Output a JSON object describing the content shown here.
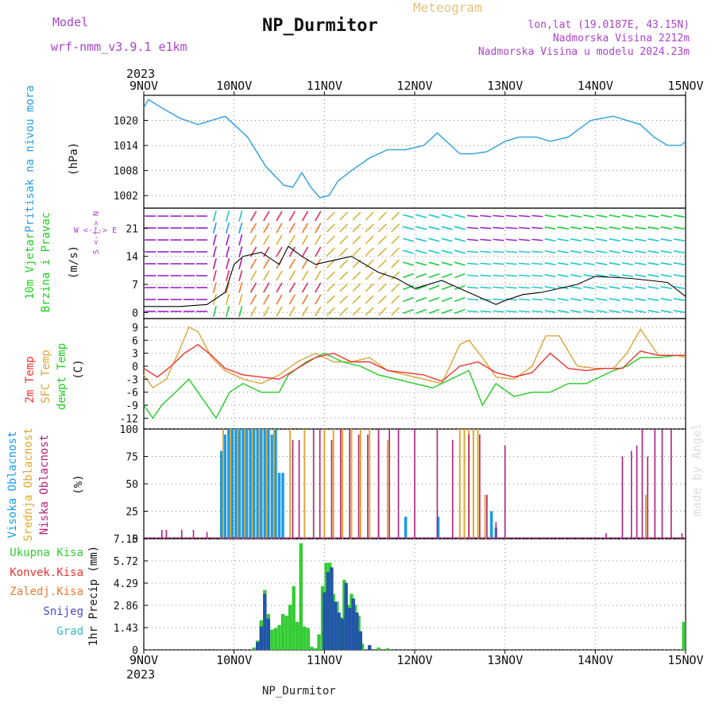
{
  "header": {
    "model_label": "Model",
    "model_value": "wrf-nmm_v3.9.1 e1km",
    "station": "NP_Durmitor",
    "product": "Meteogram",
    "lonlat": "lon,lat (19.0187E, 43.15N)",
    "altitude": "Nadmorska Visina 2212m",
    "model_altitude": "Nadmorska Visina u modelu 2024.23m",
    "year_top": "2023",
    "year_bottom": "2023",
    "footer": "NP_Durmitor",
    "watermark": "made by Angel"
  },
  "colors": {
    "pressure": "#2a9fe0",
    "temp2m": "#ee3333",
    "sfc_temp": "#d9a53a",
    "dewpt": "#22cc22",
    "high_cloud": "#1a9be6",
    "mid_cloud": "#e0a830",
    "low_cloud": "#b0207a",
    "total_precip": "#33cc33",
    "snow": "#2255aa",
    "wind_gust": "#000000",
    "wind_dir": "#aa44cc"
  },
  "chart_data": [
    {
      "type": "line",
      "title": "Pritisak na nivou mora",
      "ylabel": "(hPa)",
      "ylim": [
        999,
        1026
      ],
      "yticks": [
        "1002",
        "1008",
        "1014",
        "1020"
      ],
      "x_unit": "days from 9NOV 00UTC",
      "x_ticks": [
        "9NOV",
        "10NOV",
        "11NOV",
        "12NOV",
        "13NOV",
        "14NOV",
        "15NOV"
      ],
      "series": [
        {
          "name": "Pritisak na nivou mora",
          "x": [
            0,
            0.05,
            0.2,
            0.4,
            0.6,
            0.75,
            0.9,
            1.0,
            1.15,
            1.35,
            1.55,
            1.65,
            1.75,
            1.85,
            1.95,
            2.05,
            2.15,
            2.3,
            2.5,
            2.7,
            2.9,
            3.1,
            3.25,
            3.35,
            3.5,
            3.65,
            3.8,
            4.0,
            4.15,
            4.35,
            4.5,
            4.7,
            4.95,
            5.2,
            5.35,
            5.5,
            5.65,
            5.8,
            5.95,
            6.0
          ],
          "values": [
            1023,
            1025,
            1023,
            1020.5,
            1019,
            1020,
            1021,
            1019,
            1016,
            1009,
            1004.5,
            1004,
            1007.5,
            1004,
            1001.5,
            1002,
            1005.5,
            1008,
            1011,
            1013,
            1013,
            1014,
            1017,
            1015,
            1012,
            1012,
            1012.5,
            1015,
            1016,
            1016,
            1015,
            1016,
            1020,
            1021,
            1020,
            1019,
            1016,
            1014,
            1014,
            1015
          ]
        }
      ]
    },
    {
      "type": "line",
      "title": "10m Vjetar Brzina i Pravac",
      "ylabel": "(m/s)",
      "ylim": [
        -1.5,
        26
      ],
      "yticks": [
        "0",
        "7",
        "14",
        "21"
      ],
      "compass_label": "W <-|-> E",
      "compass_label_v": "S <-|-> N",
      "series": [
        {
          "name": "10m Vjetar Brzina i Pravac",
          "x": [
            0,
            0.4,
            0.7,
            0.9,
            1.0,
            1.1,
            1.3,
            1.5,
            1.6,
            1.75,
            1.9,
            2.1,
            2.3,
            2.6,
            2.8,
            3.0,
            3.3,
            3.5,
            3.7,
            3.9,
            4.0,
            4.2,
            4.4,
            4.6,
            4.8,
            5.0,
            5.4,
            5.8,
            6.0
          ],
          "values": [
            1.5,
            1.5,
            2,
            5,
            12,
            14,
            15,
            12,
            16.5,
            14,
            12,
            13,
            14,
            10,
            8.5,
            6,
            8,
            6,
            4,
            2,
            3,
            4.5,
            5,
            6,
            7,
            9,
            8.5,
            7.5,
            4
          ]
        }
      ]
    },
    {
      "type": "line",
      "title": "2m Temp / SFC Temp / dewpt Temp",
      "ylabel": "(C)",
      "ylim": [
        -14.5,
        11
      ],
      "yticks": [
        "-12",
        "-9",
        "-6",
        "-3",
        "0",
        "3",
        "6",
        "9"
      ],
      "series": [
        {
          "name": "2m Temp",
          "x": [
            0,
            0.15,
            0.3,
            0.45,
            0.6,
            0.75,
            0.9,
            1.1,
            1.3,
            1.5,
            1.7,
            1.9,
            2.1,
            2.3,
            2.5,
            2.7,
            2.9,
            3.1,
            3.3,
            3.5,
            3.7,
            3.9,
            4.1,
            4.3,
            4.5,
            4.7,
            4.9,
            5.1,
            5.3,
            5.5,
            5.7,
            5.9,
            6.0
          ],
          "values": [
            -0.5,
            -2.5,
            0,
            3,
            5,
            2.5,
            -0.5,
            -2,
            -2.5,
            -3,
            -0.5,
            2,
            3,
            1,
            1,
            -1,
            -1.5,
            -2,
            -3.5,
            0,
            1,
            -1.5,
            -2.5,
            -1.5,
            3,
            -0.5,
            -1,
            -0.5,
            -0.5,
            3.5,
            2.5,
            2.5,
            2.5
          ]
        },
        {
          "name": "SFC Temp",
          "x": [
            0,
            0.1,
            0.25,
            0.4,
            0.5,
            0.6,
            0.75,
            0.9,
            1.1,
            1.3,
            1.5,
            1.7,
            1.9,
            2.1,
            2.3,
            2.5,
            2.7,
            2.9,
            3.1,
            3.3,
            3.5,
            3.6,
            3.75,
            3.9,
            4.1,
            4.3,
            4.45,
            4.6,
            4.8,
            5.0,
            5.2,
            5.35,
            5.5,
            5.7,
            5.9,
            6.0
          ],
          "values": [
            -2,
            -5,
            -3,
            4,
            9,
            8,
            2,
            -1,
            -3,
            -4,
            -2,
            1,
            3,
            1,
            1,
            2,
            -1,
            -2,
            -3,
            -4,
            5,
            6,
            2,
            -2.5,
            -3,
            0,
            7,
            7,
            0,
            -0.5,
            -0.5,
            3,
            8.5,
            2.5,
            2.5,
            2
          ]
        },
        {
          "name": "dewpt Temp",
          "x": [
            0,
            0.1,
            0.2,
            0.35,
            0.5,
            0.7,
            0.8,
            0.95,
            1.1,
            1.3,
            1.5,
            1.6,
            1.8,
            2.0,
            2.2,
            2.4,
            2.6,
            2.8,
            3.0,
            3.2,
            3.4,
            3.6,
            3.75,
            3.9,
            4.1,
            4.3,
            4.5,
            4.7,
            4.9,
            5.0,
            5.2,
            5.35,
            5.5,
            5.7,
            5.9,
            6.0
          ],
          "values": [
            -9,
            -12,
            -9,
            -6,
            -3,
            -9,
            -12,
            -6,
            -4,
            -6,
            -6,
            -2,
            1,
            3,
            1,
            0,
            -2,
            -3,
            -4,
            -5,
            -3,
            -1,
            -9,
            -4,
            -7,
            -6,
            -6,
            -4,
            -4,
            -3,
            -1,
            0,
            2,
            2,
            2.5,
            2.5
          ]
        }
      ]
    },
    {
      "type": "bar",
      "title": "Visoka / Srednja / Niska Oblacnost",
      "ylabel": "(%)",
      "ylim": [
        0,
        100
      ],
      "yticks": [
        "0",
        "25",
        "50",
        "75",
        "100"
      ],
      "series": [
        {
          "name": "Visoka Oblacnost",
          "x": [
            0.86,
            0.9,
            0.94,
            0.98,
            1.02,
            1.06,
            1.1,
            1.14,
            1.18,
            1.22,
            1.26,
            1.3,
            1.34,
            1.38,
            1.42,
            1.46,
            1.5,
            1.54,
            2.9,
            3.26,
            3.85,
            3.9
          ],
          "values": [
            80,
            95,
            100,
            100,
            100,
            100,
            100,
            100,
            100,
            100,
            100,
            100,
            100,
            100,
            95,
            100,
            60,
            60,
            20,
            20,
            25,
            10
          ]
        },
        {
          "name": "Srednja Oblacnost",
          "x": [
            0.88,
            0.96,
            1.04,
            1.12,
            1.2,
            1.28,
            1.36,
            1.44,
            1.62,
            1.78,
            2.0,
            2.1,
            2.2,
            2.3,
            2.4,
            2.5,
            2.6,
            2.7,
            3.5,
            3.55,
            3.6,
            3.65,
            3.7,
            3.78,
            5.56
          ],
          "values": [
            100,
            100,
            100,
            100,
            100,
            100,
            100,
            100,
            100,
            100,
            100,
            100,
            100,
            100,
            100,
            100,
            90,
            90,
            100,
            100,
            100,
            100,
            100,
            40,
            40
          ]
        },
        {
          "name": "Niska Oblacnost",
          "x": [
            0.2,
            0.25,
            0.42,
            0.55,
            0.7,
            1.65,
            1.72,
            1.88,
            1.95,
            2.08,
            2.18,
            2.28,
            2.38,
            2.48,
            2.6,
            2.72,
            2.82,
            3.0,
            3.25,
            3.42,
            3.6,
            3.72,
            3.8,
            3.9,
            4.0,
            5.12,
            5.3,
            5.4,
            5.46,
            5.52,
            5.58,
            5.66,
            5.74,
            5.84,
            5.96
          ],
          "values": [
            8,
            8,
            8,
            8,
            6,
            90,
            90,
            100,
            100,
            90,
            100,
            100,
            95,
            95,
            100,
            100,
            100,
            100,
            100,
            90,
            95,
            95,
            40,
            15,
            85,
            5,
            75,
            80,
            85,
            100,
            75,
            100,
            100,
            100,
            5
          ]
        }
      ]
    },
    {
      "type": "bar",
      "title": "1hr Precip",
      "ylabel": "1hr Precip (mm)",
      "ylim": [
        0,
        7.15
      ],
      "yticks": [
        "0",
        "1.43",
        "2.86",
        "4.29",
        "5.72",
        "7.15"
      ],
      "legend": [
        "Ukupna Kisa",
        "Konvek.Kisa",
        "Zaledj.Kisa",
        "Snijeg",
        "Grad"
      ],
      "series": [
        {
          "name": "Ukupna Kisa",
          "x": [
            1.22,
            1.26,
            1.3,
            1.34,
            1.38,
            1.42,
            1.46,
            1.5,
            1.54,
            1.58,
            1.62,
            1.66,
            1.7,
            1.74,
            1.78,
            1.82,
            1.86,
            1.9,
            1.94,
            1.98,
            2.02,
            2.06,
            2.1,
            2.14,
            2.18,
            2.22,
            2.26,
            2.3,
            2.34,
            2.38,
            2.42,
            2.5,
            2.6,
            2.7,
            5.98
          ],
          "values": [
            0.15,
            0.6,
            1.9,
            3.85,
            2.3,
            1.3,
            1.4,
            1.6,
            2.3,
            2.2,
            2.9,
            4.1,
            1.8,
            6.85,
            1.5,
            1.4,
            0.2,
            0.1,
            1.0,
            4.1,
            5.6,
            5.6,
            3.6,
            3.1,
            2.1,
            4.5,
            2.9,
            3.6,
            2.9,
            2.2,
            0.4,
            0.3,
            0.15,
            0.1,
            1.8
          ]
        },
        {
          "name": "Snijeg",
          "x": [
            1.26,
            1.3,
            1.34,
            1.38,
            2.0,
            2.04,
            2.08,
            2.12,
            2.16,
            2.2,
            2.24,
            2.28,
            2.32,
            2.36,
            2.4,
            2.5
          ],
          "values": [
            0.5,
            1.5,
            3.6,
            2.0,
            3.7,
            5.0,
            5.3,
            3.1,
            2.4,
            2.0,
            4.3,
            2.7,
            3.3,
            2.4,
            1.2,
            0.3
          ]
        }
      ]
    }
  ],
  "panels": {
    "p1_label_a": "Pritisak na nivou mora",
    "p1_unit": "(hPa)",
    "p2_label_a": "10m Vjetar",
    "p2_label_b": "Brzina i Pravac",
    "p2_unit": "(m/s)",
    "p3_label_a": "2m Temp",
    "p3_label_b": "SFC Temp",
    "p3_label_c": "dewpt Temp",
    "p3_unit": "(C)",
    "p4_label_a": "Visoka Oblacnost",
    "p4_label_b": "Srednja Oblacnost",
    "p4_label_c": "Niska Oblacnost",
    "p4_unit": "(%)",
    "p5_unit": "1hr Precip (mm)",
    "p5_legend": [
      "Ukupna Kisa",
      "Konvek.Kisa",
      "Zaledj.Kisa",
      "Snijeg",
      "Grad"
    ]
  }
}
